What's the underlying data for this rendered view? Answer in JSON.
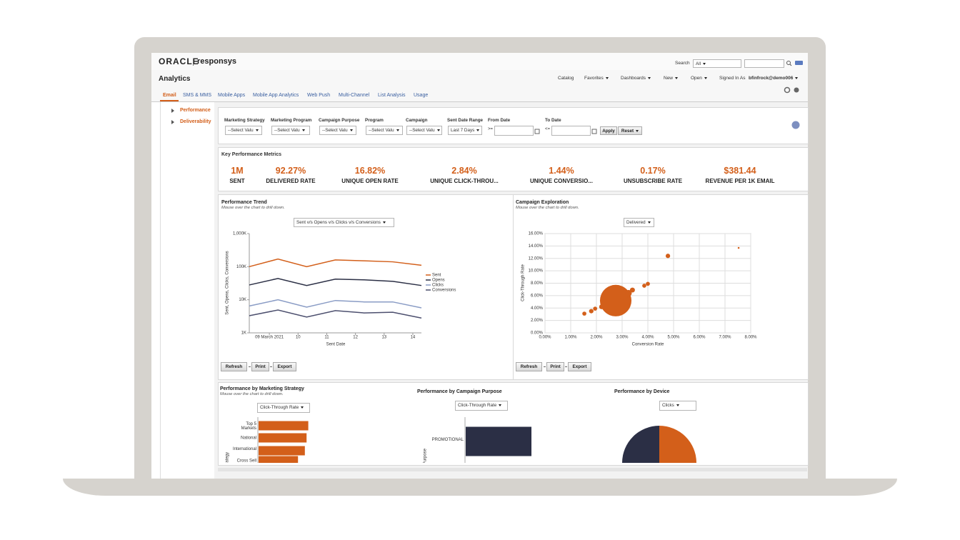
{
  "header": {
    "brand": "ORACLE",
    "product": "responsys",
    "search_label": "Search",
    "search_scope": "All"
  },
  "toolbar": {
    "title": "Analytics",
    "menus": [
      "Catalog",
      "Favorites",
      "Dashboards",
      "New",
      "Open"
    ],
    "signed_in_label": "Signed In As",
    "user": "bfinfrock@demo006"
  },
  "tabs": [
    "Email",
    "SMS & MMS",
    "Mobile Apps",
    "Mobile App Analytics",
    "Web Push",
    "Multi-Channel",
    "List Analysis",
    "Usage"
  ],
  "sidebar": [
    "Performance",
    "Deliverability"
  ],
  "filters": {
    "fields": [
      {
        "label": "Marketing Strategy",
        "value": "--Select Valu"
      },
      {
        "label": "Marketing Program",
        "value": "--Select Valu"
      },
      {
        "label": "Campaign Purpose",
        "value": "--Select Valu"
      },
      {
        "label": "Program",
        "value": "--Select Valu"
      },
      {
        "label": "Campaign",
        "value": "--Select Valu"
      },
      {
        "label": "Sent Date Range",
        "value": "Last 7 Days"
      }
    ],
    "from_label": "From Date",
    "from_op": ">=",
    "to_label": "To Date",
    "to_op": "<=",
    "apply": "Apply",
    "reset": "Reset"
  },
  "kpis": {
    "title": "Key Performance Metrics",
    "metrics": [
      {
        "value": "1M",
        "label": "SENT"
      },
      {
        "value": "92.27%",
        "label": "DELIVERED RATE"
      },
      {
        "value": "16.82%",
        "label": "UNIQUE OPEN RATE"
      },
      {
        "value": "2.84%",
        "label": "UNIQUE CLICK-THROU..."
      },
      {
        "value": "1.44%",
        "label": "UNIQUE CONVERSIO..."
      },
      {
        "value": "0.17%",
        "label": "UNSUBSCRIBE RATE"
      },
      {
        "value": "$381.44",
        "label": "REVENUE PER 1K EMAIL"
      }
    ]
  },
  "buttons": [
    "Refresh",
    "Print",
    "Export"
  ],
  "trend": {
    "type": "line",
    "title": "Performance Trend",
    "subtitle": "Mouse over the chart to drill down.",
    "selector": "Sent v/s Opens v/s Clicks v/s Conversions",
    "x_label": "Sent Date",
    "y_label": "Sent, Opens, Clicks, Conversions",
    "log_scale": true,
    "x": [
      8.3,
      9.3,
      10.3,
      11.3,
      12.3,
      13.3,
      14.3
    ],
    "xlim": [
      8.3,
      14.3
    ],
    "xticks": [
      {
        "value": 9,
        "label": "09 March 2021"
      },
      10,
      11,
      12,
      13,
      14
    ],
    "ylim": [
      1000,
      1000000
    ],
    "yticks": [
      {
        "value": 1000,
        "label": "1K"
      },
      {
        "value": 10000,
        "label": "10K"
      },
      {
        "value": 100000,
        "label": "100K"
      },
      {
        "value": 1000000,
        "label": "1,000K"
      }
    ],
    "series": [
      {
        "name": "Sent",
        "color": "#d35f1a",
        "values": [
          100000,
          170000,
          100000,
          160000,
          150000,
          140000,
          110000
        ]
      },
      {
        "name": "Opens",
        "color": "#2b2f45",
        "values": [
          28000,
          44000,
          27000,
          42000,
          40000,
          36000,
          27000
        ]
      },
      {
        "name": "Clicks",
        "color": "#8a9cc5",
        "values": [
          6500,
          10000,
          6000,
          9500,
          8600,
          8600,
          5700
        ]
      },
      {
        "name": "Conversions",
        "color": "#4c4f6e",
        "values": [
          3300,
          4900,
          3000,
          4700,
          4000,
          4200,
          2800
        ]
      }
    ]
  },
  "exploration": {
    "type": "scatter",
    "title": "Campaign Exploration",
    "subtitle": "Mouse over the chart to drill down.",
    "selector": "Delivered",
    "x_label": "Conversion Rate",
    "y_label": "Click-Through Rate",
    "color": "#d35f1a",
    "grid": true,
    "x": [
      1.53,
      1.8,
      1.95,
      2.2,
      2.45,
      2.75,
      3.05,
      3.25,
      3.4,
      3.86,
      4.0,
      4.78,
      7.53
    ],
    "values": [
      3.1,
      3.5,
      3.9,
      4.2,
      4.6,
      5.2,
      6.1,
      6.4,
      6.9,
      7.6,
      7.9,
      12.4,
      13.7
    ],
    "sizes": [
      10,
      12,
      10,
      14,
      40,
      600,
      50,
      25,
      15,
      10,
      10,
      12,
      2
    ],
    "xlim": [
      0,
      8
    ],
    "xticks": [
      {
        "value": 0,
        "label": "0.00%"
      },
      {
        "value": 1,
        "label": "1.00%"
      },
      {
        "value": 2,
        "label": "2.00%"
      },
      {
        "value": 3,
        "label": "3.00%"
      },
      {
        "value": 4,
        "label": "4.00%"
      },
      {
        "value": 5,
        "label": "5.00%"
      },
      {
        "value": 6,
        "label": "6.00%"
      },
      {
        "value": 7,
        "label": "7.00%"
      },
      {
        "value": 8,
        "label": "8.00%"
      }
    ],
    "ylim": [
      0,
      16
    ],
    "yticks": [
      {
        "value": 0,
        "label": "0.00%"
      },
      {
        "value": 2,
        "label": "2.00%"
      },
      {
        "value": 4,
        "label": "4.00%"
      },
      {
        "value": 6,
        "label": "6.00%"
      },
      {
        "value": 8,
        "label": "8.00%"
      },
      {
        "value": 10,
        "label": "10.00%"
      },
      {
        "value": 12,
        "label": "12.00%"
      },
      {
        "value": 14,
        "label": "14.00%"
      },
      {
        "value": 16,
        "label": "16.00%"
      }
    ]
  },
  "by_strategy": {
    "type": "bar",
    "title": "Performance by Marketing Strategy",
    "subtitle": "Mouse over the chart to drill down.",
    "selector": "Click-Through Rate",
    "y_label": "Marketing Strategy",
    "categories": [
      "Top 5 Markets",
      "National",
      "International",
      "Cross Sell"
    ],
    "values": [
      2.9,
      2.8,
      2.7,
      2.3
    ],
    "color": "#d35f1a"
  },
  "by_purpose": {
    "type": "bar",
    "title": "Performance by Campaign Purpose",
    "selector": "Click-Through Rate",
    "y_label": "Campaign Purpose",
    "categories": [
      "PROMOTIONAL"
    ],
    "values": [
      2.84
    ],
    "color": "#2b2f45"
  },
  "by_device": {
    "type": "pie",
    "title": "Performance by Device",
    "selector": "Clicks",
    "values": [
      50,
      50
    ],
    "colors": [
      "#d35f1a",
      "#2b2f45"
    ]
  }
}
